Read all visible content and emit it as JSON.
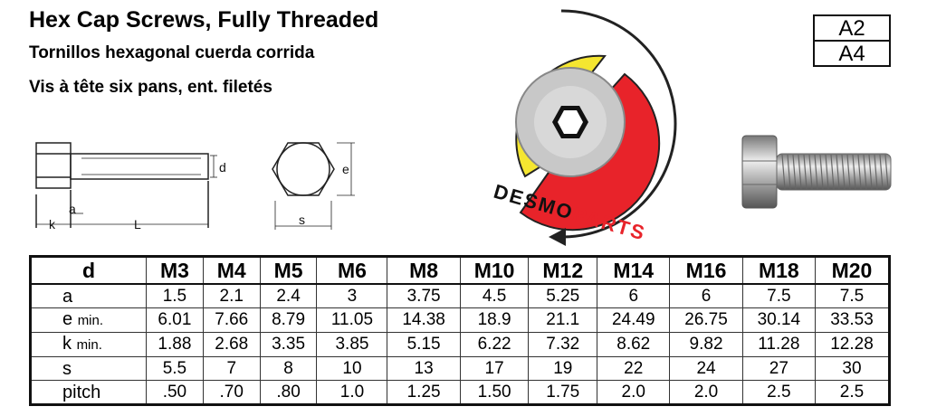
{
  "header": {
    "title": "Hex Cap Screws, Fully Threaded",
    "subtitle_es": "Tornillos hexagonal cuerda corrida",
    "subtitle_fr": "Vis à tête six pans, ent. filetés"
  },
  "grades": [
    "A2",
    "A4"
  ],
  "drawing_labels": {
    "side": [
      "d",
      "k",
      "a",
      "L"
    ],
    "front": [
      "e",
      "s"
    ]
  },
  "logo": {
    "part1": "DESMO",
    "part2": "PARTS"
  },
  "table": {
    "header": [
      "d",
      "M3",
      "M4",
      "M5",
      "M6",
      "M8",
      "M10",
      "M12",
      "M14",
      "M16",
      "M18",
      "M20"
    ],
    "rows": [
      {
        "symbol": "a",
        "values": [
          "1.5",
          "2.1",
          "2.4",
          "3",
          "3.75",
          "4.5",
          "5.25",
          "6",
          "6",
          "7.5",
          "7.5"
        ]
      },
      {
        "symbol": "e",
        "note": "min.",
        "values": [
          "6.01",
          "7.66",
          "8.79",
          "11.05",
          "14.38",
          "18.9",
          "21.1",
          "24.49",
          "26.75",
          "30.14",
          "33.53"
        ]
      },
      {
        "symbol": "k",
        "note": "min.",
        "values": [
          "1.88",
          "2.68",
          "3.35",
          "3.85",
          "5.15",
          "6.22",
          "7.32",
          "8.62",
          "9.82",
          "11.28",
          "12.28"
        ]
      },
      {
        "symbol": "s",
        "values": [
          "5.5",
          "7",
          "8",
          "10",
          "13",
          "17",
          "19",
          "22",
          "24",
          "27",
          "30"
        ]
      },
      {
        "symbol": "pitch",
        "values": [
          ".50",
          ".70",
          ".80",
          "1.0",
          "1.25",
          "1.50",
          "1.75",
          "2.0",
          "2.0",
          "2.5",
          "2.5"
        ]
      }
    ]
  }
}
